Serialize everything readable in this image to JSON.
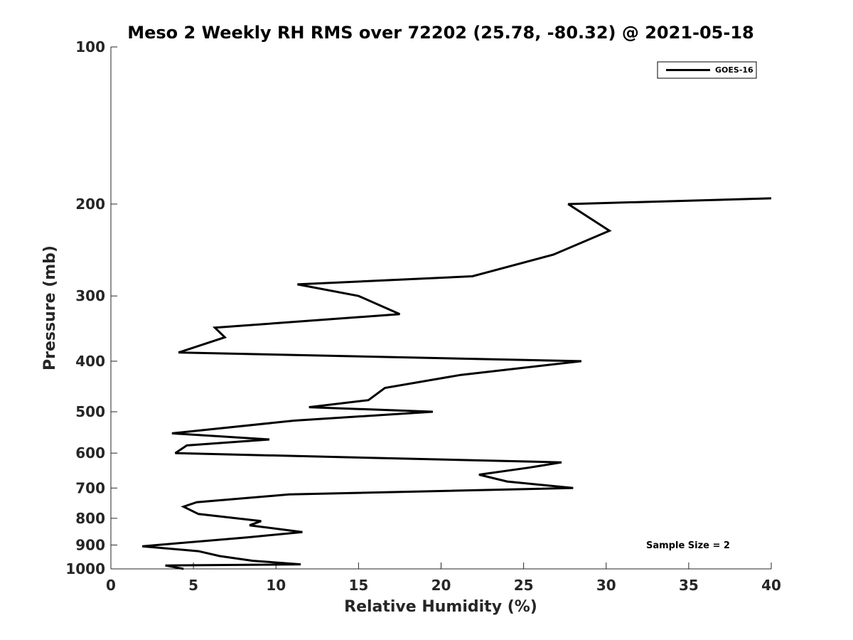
{
  "chart_data": {
    "type": "line",
    "title": "Meso 2 Weekly RH RMS over 72202 (25.78, -80.32) @ 2021-05-18",
    "xlabel": "Relative Humidity (%)",
    "ylabel": "Pressure (mb)",
    "xlim": [
      0,
      40
    ],
    "ylim": [
      100,
      1000
    ],
    "y_scale": "log",
    "y_reversed": true,
    "grid": false,
    "legend_position": "top-right",
    "x_ticks": [
      "0",
      "5",
      "10",
      "15",
      "20",
      "25",
      "30",
      "35",
      "40"
    ],
    "y_ticks": [
      "100",
      "200",
      "300",
      "400",
      "500",
      "600",
      "700",
      "800",
      "900",
      "1000"
    ],
    "annotation": "Sample Size = 2",
    "series": [
      {
        "name": "GOES-16",
        "color": "#000000",
        "x": [
          40.0,
          27.7,
          30.2,
          26.8,
          21.9,
          11.3,
          15.0,
          17.5,
          6.3,
          6.9,
          4.1,
          28.5,
          21.2,
          16.6,
          15.6,
          12.0,
          19.5,
          11.1,
          3.7,
          9.6,
          4.6,
          3.9,
          27.3,
          25.3,
          22.3,
          24.0,
          28.0,
          10.8,
          5.2,
          4.4,
          5.3,
          9.1,
          8.4,
          11.6,
          8.3,
          1.9,
          5.3,
          6.6,
          8.6,
          11.5,
          3.3,
          4.4
        ],
        "y": [
          195,
          200,
          225,
          250,
          275,
          285,
          300,
          325,
          345,
          360,
          385,
          400,
          425,
          450,
          475,
          490,
          500,
          520,
          550,
          565,
          580,
          600,
          625,
          640,
          660,
          680,
          700,
          720,
          745,
          760,
          785,
          810,
          825,
          850,
          870,
          905,
          925,
          945,
          965,
          980,
          985,
          1000
        ]
      }
    ]
  }
}
